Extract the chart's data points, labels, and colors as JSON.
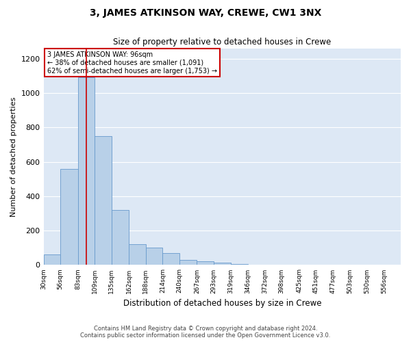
{
  "title": "3, JAMES ATKINSON WAY, CREWE, CW1 3NX",
  "subtitle": "Size of property relative to detached houses in Crewe",
  "xlabel": "Distribution of detached houses by size in Crewe",
  "ylabel": "Number of detached properties",
  "bar_color": "#b8d0e8",
  "bar_edge_color": "#6699cc",
  "background_color": "#dde8f5",
  "bins": [
    30,
    56,
    83,
    109,
    135,
    162,
    188,
    214,
    240,
    267,
    293,
    319,
    346,
    372,
    398,
    425,
    451,
    477,
    503,
    530,
    556
  ],
  "values": [
    60,
    560,
    1090,
    750,
    320,
    120,
    100,
    70,
    30,
    20,
    15,
    5,
    0,
    0,
    0,
    0,
    0,
    0,
    0,
    0
  ],
  "property_size": 96,
  "annotation_line1": "3 JAMES ATKINSON WAY: 96sqm",
  "annotation_line2": "← 38% of detached houses are smaller (1,091)",
  "annotation_line3": "62% of semi-detached houses are larger (1,753) →",
  "annotation_box_color": "white",
  "annotation_box_edge_color": "#cc0000",
  "vline_color": "#cc0000",
  "ylim": [
    0,
    1260
  ],
  "yticks": [
    0,
    200,
    400,
    600,
    800,
    1000,
    1200
  ],
  "footer_line1": "Contains HM Land Registry data © Crown copyright and database right 2024.",
  "footer_line2": "Contains public sector information licensed under the Open Government Licence v3.0."
}
